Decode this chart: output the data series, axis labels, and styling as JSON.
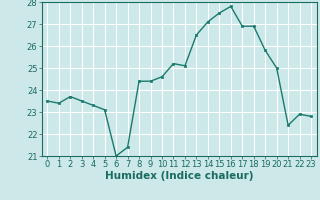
{
  "x": [
    0,
    1,
    2,
    3,
    4,
    5,
    6,
    7,
    8,
    9,
    10,
    11,
    12,
    13,
    14,
    15,
    16,
    17,
    18,
    19,
    20,
    21,
    22,
    23
  ],
  "y": [
    23.5,
    23.4,
    23.7,
    23.5,
    23.3,
    23.1,
    21.0,
    21.4,
    24.4,
    24.4,
    24.6,
    25.2,
    25.1,
    26.5,
    27.1,
    27.5,
    27.8,
    26.9,
    26.9,
    25.8,
    25.0,
    22.4,
    22.9,
    22.8
  ],
  "line_color": "#1a7a6e",
  "marker": "s",
  "marker_size": 2,
  "linewidth": 1.0,
  "xlabel": "Humidex (Indice chaleur)",
  "xlim": [
    -0.5,
    23.5
  ],
  "ylim": [
    21,
    28
  ],
  "yticks": [
    21,
    22,
    23,
    24,
    25,
    26,
    27,
    28
  ],
  "xticks": [
    0,
    1,
    2,
    3,
    4,
    5,
    6,
    7,
    8,
    9,
    10,
    11,
    12,
    13,
    14,
    15,
    16,
    17,
    18,
    19,
    20,
    21,
    22,
    23
  ],
  "bg_color": "#cce8e8",
  "grid_color": "#ffffff",
  "tick_color": "#1a6b60",
  "label_color": "#1a6b60",
  "xlabel_fontsize": 7.5,
  "tick_fontsize": 6.0
}
